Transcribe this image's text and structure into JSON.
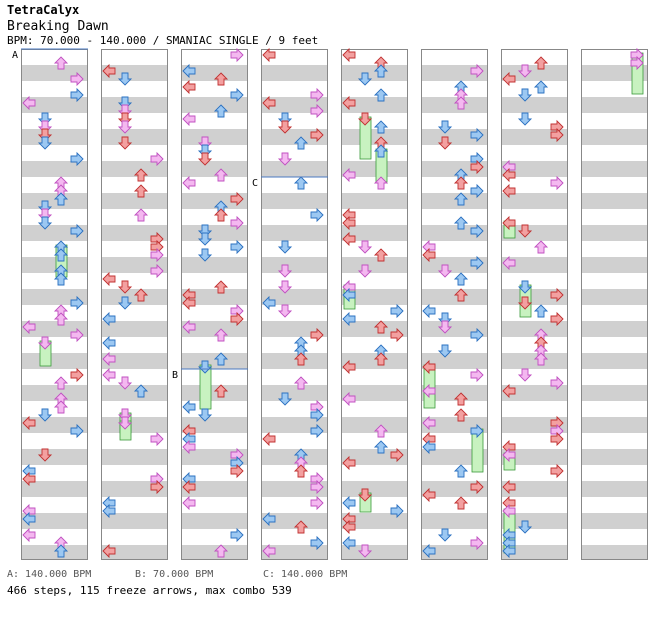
{
  "header": {
    "artist": "TetraCalyx",
    "song": "Breaking Dawn",
    "bpm_line": "BPM: 70.000 - 140.000 / SMANIAC SINGLE / 9 feet"
  },
  "chart_data": {
    "type": "step-chart",
    "columns": 8,
    "measures_per_column": 8,
    "lanes": [
      "left",
      "down",
      "up",
      "right"
    ],
    "bpm_markers": [
      {
        "label": "A",
        "column": 0,
        "beat": 0
      },
      {
        "label": "B",
        "column": 2,
        "beat": 20
      },
      {
        "label": "C",
        "column": 3,
        "beat": 8
      }
    ],
    "colors": {
      "quarter": "#f3a0a0",
      "eighth": "#9cc8f2",
      "sixteenth": "#f4b8f0",
      "freeze": "#c8f2c0",
      "stripe": "#d0d0d0"
    }
  },
  "legend": {
    "a": "A: 140.000 BPM",
    "b": "B: 70.000 BPM",
    "c": "C: 140.000 BPM"
  },
  "stats": "466 steps, 115 freeze arrows, max combo 539"
}
